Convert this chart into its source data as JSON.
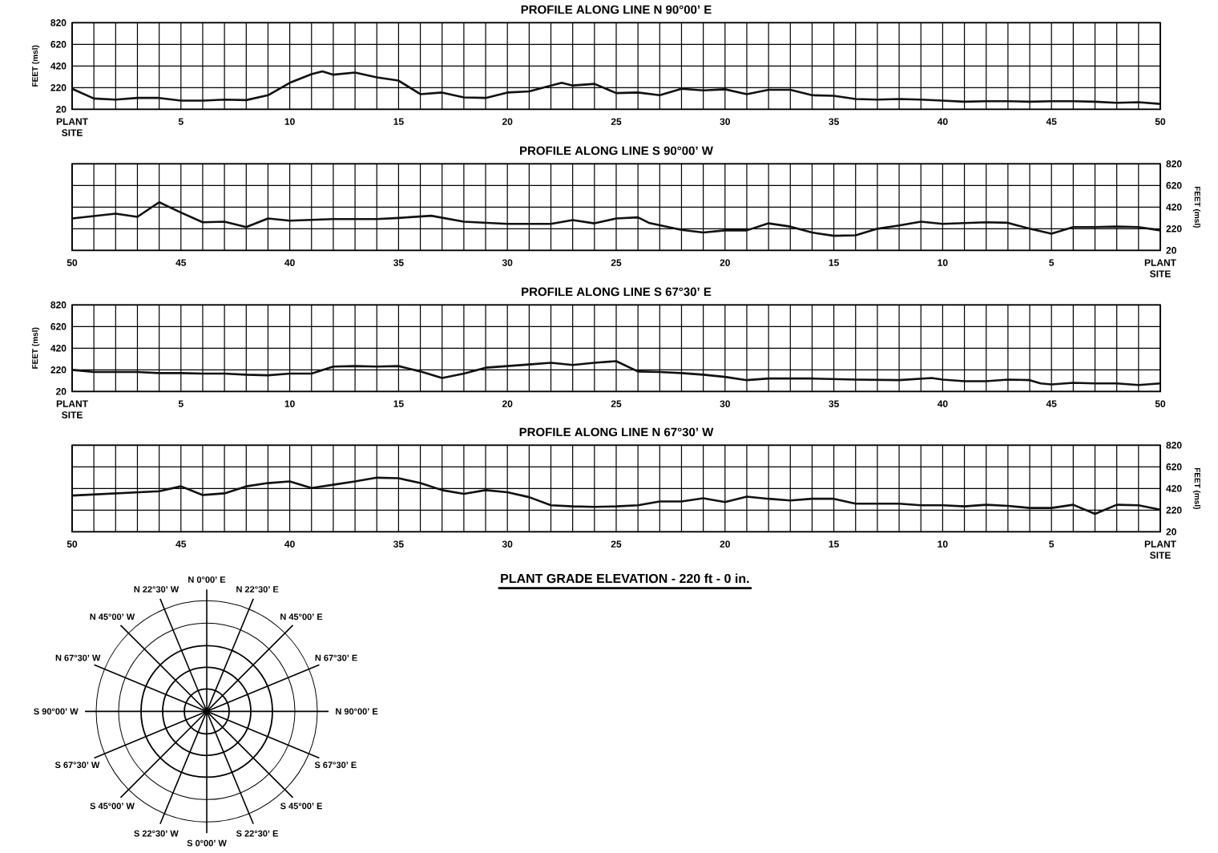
{
  "chart_data": [
    {
      "type": "line",
      "title": "PROFILE ALONG LINE N 90°00’ E",
      "ylabel": "FEET (msl)",
      "grid": true,
      "x": [
        0,
        1,
        2,
        3,
        4,
        5,
        6,
        7,
        8,
        9,
        10,
        11,
        11.5,
        12,
        13,
        14,
        15,
        16,
        17,
        18,
        19,
        20,
        21,
        22,
        22.5,
        23,
        24,
        25,
        26,
        27,
        28,
        29,
        30,
        31,
        32,
        33,
        34,
        35,
        36,
        37,
        38,
        39,
        40,
        41,
        42,
        43,
        44,
        45,
        46,
        47,
        48,
        49,
        50
      ],
      "series": [
        {
          "color": "#111111",
          "values": [
            210,
            120,
            110,
            125,
            125,
            100,
            100,
            110,
            105,
            150,
            265,
            345,
            370,
            340,
            360,
            315,
            285,
            160,
            175,
            130,
            125,
            175,
            185,
            240,
            265,
            240,
            255,
            170,
            175,
            150,
            210,
            195,
            205,
            160,
            200,
            200,
            150,
            145,
            115,
            110,
            115,
            110,
            100,
            90,
            95,
            95,
            90,
            95,
            95,
            90,
            80,
            85,
            70
          ]
        }
      ],
      "xlim": [
        0,
        50
      ],
      "xticks": [
        {
          "value": 0,
          "label": "PLANT SITE"
        },
        {
          "value": 1,
          "label": null
        },
        {
          "value": 2,
          "label": null
        },
        {
          "value": 3,
          "label": null
        },
        {
          "value": 4,
          "label": null
        },
        5,
        {
          "value": 6,
          "label": null
        },
        {
          "value": 7,
          "label": null
        },
        {
          "value": 8,
          "label": null
        },
        {
          "value": 9,
          "label": null
        },
        10,
        {
          "value": 11,
          "label": null
        },
        {
          "value": 12,
          "label": null
        },
        {
          "value": 13,
          "label": null
        },
        {
          "value": 14,
          "label": null
        },
        15,
        {
          "value": 16,
          "label": null
        },
        {
          "value": 17,
          "label": null
        },
        {
          "value": 18,
          "label": null
        },
        {
          "value": 19,
          "label": null
        },
        20,
        {
          "value": 21,
          "label": null
        },
        {
          "value": 22,
          "label": null
        },
        {
          "value": 23,
          "label": null
        },
        {
          "value": 24,
          "label": null
        },
        25,
        {
          "value": 26,
          "label": null
        },
        {
          "value": 27,
          "label": null
        },
        {
          "value": 28,
          "label": null
        },
        {
          "value": 29,
          "label": null
        },
        30,
        {
          "value": 31,
          "label": null
        },
        {
          "value": 32,
          "label": null
        },
        {
          "value": 33,
          "label": null
        },
        {
          "value": 34,
          "label": null
        },
        35,
        {
          "value": 36,
          "label": null
        },
        {
          "value": 37,
          "label": null
        },
        {
          "value": 38,
          "label": null
        },
        {
          "value": 39,
          "label": null
        },
        40,
        {
          "value": 41,
          "label": null
        },
        {
          "value": 42,
          "label": null
        },
        {
          "value": 43,
          "label": null
        },
        {
          "value": 44,
          "label": null
        },
        45,
        {
          "value": 46,
          "label": null
        },
        {
          "value": 47,
          "label": null
        },
        {
          "value": 48,
          "label": null
        },
        {
          "value": 49,
          "label": null
        },
        50
      ],
      "ylim": [
        20,
        820
      ],
      "yticks": [
        20,
        220,
        420,
        620,
        820
      ]
    },
    {
      "type": "line",
      "title": "PROFILE ALONG LINE S 90°00’ W",
      "y2label": "FEET (msl)",
      "grid": true,
      "x": [
        50,
        48,
        47,
        46,
        45,
        44,
        43,
        42,
        41,
        40,
        38,
        36,
        35,
        33.5,
        32,
        30,
        28,
        27,
        26,
        25,
        24,
        23.5,
        22,
        21,
        20,
        19,
        18,
        17,
        16,
        15,
        14,
        13,
        12,
        11,
        10,
        8,
        7,
        6,
        5,
        4,
        3,
        2,
        1,
        0
      ],
      "series": [
        {
          "color": "#111111",
          "axis": "y2",
          "values": [
            315,
            360,
            330,
            465,
            370,
            280,
            285,
            235,
            315,
            295,
            310,
            310,
            320,
            340,
            285,
            265,
            265,
            300,
            270,
            315,
            325,
            275,
            210,
            185,
            205,
            205,
            270,
            240,
            185,
            155,
            160,
            220,
            250,
            285,
            265,
            280,
            275,
            220,
            175,
            235,
            235,
            240,
            235,
            205
          ]
        }
      ],
      "xlim": [
        50,
        0
      ],
      "xticks": [
        {
          "value": 0,
          "label": "PLANT SITE"
        },
        {
          "value": 1,
          "label": null
        },
        {
          "value": 2,
          "label": null
        },
        {
          "value": 3,
          "label": null
        },
        {
          "value": 4,
          "label": null
        },
        5,
        {
          "value": 6,
          "label": null
        },
        {
          "value": 7,
          "label": null
        },
        {
          "value": 8,
          "label": null
        },
        {
          "value": 9,
          "label": null
        },
        10,
        {
          "value": 11,
          "label": null
        },
        {
          "value": 12,
          "label": null
        },
        {
          "value": 13,
          "label": null
        },
        {
          "value": 14,
          "label": null
        },
        15,
        {
          "value": 16,
          "label": null
        },
        {
          "value": 17,
          "label": null
        },
        {
          "value": 18,
          "label": null
        },
        {
          "value": 19,
          "label": null
        },
        20,
        {
          "value": 21,
          "label": null
        },
        {
          "value": 22,
          "label": null
        },
        {
          "value": 23,
          "label": null
        },
        {
          "value": 24,
          "label": null
        },
        25,
        {
          "value": 26,
          "label": null
        },
        {
          "value": 27,
          "label": null
        },
        {
          "value": 28,
          "label": null
        },
        {
          "value": 29,
          "label": null
        },
        30,
        {
          "value": 31,
          "label": null
        },
        {
          "value": 32,
          "label": null
        },
        {
          "value": 33,
          "label": null
        },
        {
          "value": 34,
          "label": null
        },
        35,
        {
          "value": 36,
          "label": null
        },
        {
          "value": 37,
          "label": null
        },
        {
          "value": 38,
          "label": null
        },
        {
          "value": 39,
          "label": null
        },
        40,
        {
          "value": 41,
          "label": null
        },
        {
          "value": 42,
          "label": null
        },
        {
          "value": 43,
          "label": null
        },
        {
          "value": 44,
          "label": null
        },
        45,
        {
          "value": 46,
          "label": null
        },
        {
          "value": 47,
          "label": null
        },
        {
          "value": 48,
          "label": null
        },
        {
          "value": 49,
          "label": null
        },
        50
      ],
      "y2lim": [
        20,
        820
      ],
      "y2ticks": [
        20,
        220,
        420,
        620,
        820
      ]
    },
    {
      "type": "line",
      "title": "PROFILE ALONG LINE S 67°30’ E",
      "ylabel": "FEET (msl)",
      "grid": true,
      "x": [
        0,
        1,
        2,
        3,
        4,
        5,
        6,
        7,
        8,
        9,
        10,
        11,
        12,
        13,
        14,
        15,
        16,
        17,
        18,
        19,
        20,
        21,
        22,
        23,
        24,
        25,
        26,
        27,
        28,
        29,
        30,
        31,
        32,
        34,
        36,
        38,
        39.5,
        40,
        41,
        42,
        43,
        44,
        44.5,
        45,
        46,
        47,
        48,
        49,
        50
      ],
      "series": [
        {
          "color": "#111111",
          "values": [
            220,
            200,
            200,
            200,
            190,
            190,
            185,
            185,
            175,
            170,
            185,
            185,
            250,
            255,
            250,
            255,
            205,
            145,
            185,
            240,
            255,
            270,
            285,
            265,
            285,
            300,
            205,
            200,
            190,
            175,
            155,
            125,
            140,
            140,
            130,
            125,
            145,
            130,
            115,
            115,
            130,
            125,
            95,
            85,
            100,
            95,
            95,
            80,
            95
          ]
        }
      ],
      "xlim": [
        0,
        50
      ],
      "xticks": [
        {
          "value": 0,
          "label": "PLANT SITE"
        },
        {
          "value": 1,
          "label": null
        },
        {
          "value": 2,
          "label": null
        },
        {
          "value": 3,
          "label": null
        },
        {
          "value": 4,
          "label": null
        },
        5,
        {
          "value": 6,
          "label": null
        },
        {
          "value": 7,
          "label": null
        },
        {
          "value": 8,
          "label": null
        },
        {
          "value": 9,
          "label": null
        },
        10,
        {
          "value": 11,
          "label": null
        },
        {
          "value": 12,
          "label": null
        },
        {
          "value": 13,
          "label": null
        },
        {
          "value": 14,
          "label": null
        },
        15,
        {
          "value": 16,
          "label": null
        },
        {
          "value": 17,
          "label": null
        },
        {
          "value": 18,
          "label": null
        },
        {
          "value": 19,
          "label": null
        },
        20,
        {
          "value": 21,
          "label": null
        },
        {
          "value": 22,
          "label": null
        },
        {
          "value": 23,
          "label": null
        },
        {
          "value": 24,
          "label": null
        },
        25,
        {
          "value": 26,
          "label": null
        },
        {
          "value": 27,
          "label": null
        },
        {
          "value": 28,
          "label": null
        },
        {
          "value": 29,
          "label": null
        },
        30,
        {
          "value": 31,
          "label": null
        },
        {
          "value": 32,
          "label": null
        },
        {
          "value": 33,
          "label": null
        },
        {
          "value": 34,
          "label": null
        },
        35,
        {
          "value": 36,
          "label": null
        },
        {
          "value": 37,
          "label": null
        },
        {
          "value": 38,
          "label": null
        },
        {
          "value": 39,
          "label": null
        },
        40,
        {
          "value": 41,
          "label": null
        },
        {
          "value": 42,
          "label": null
        },
        {
          "value": 43,
          "label": null
        },
        {
          "value": 44,
          "label": null
        },
        45,
        {
          "value": 46,
          "label": null
        },
        {
          "value": 47,
          "label": null
        },
        {
          "value": 48,
          "label": null
        },
        {
          "value": 49,
          "label": null
        },
        50
      ],
      "ylim": [
        20,
        820
      ],
      "yticks": [
        20,
        220,
        420,
        620,
        820
      ]
    },
    {
      "type": "line",
      "title": "PROFILE ALONG LINE N 67°30’ W",
      "y2label": "FEET (msl)",
      "grid": true,
      "annotations": [
        "PLANT GRADE ELEVATION - 220 ft - 0 in."
      ],
      "x": [
        50,
        48,
        46,
        45,
        44,
        43,
        42,
        41,
        40,
        39,
        38,
        37,
        36,
        35,
        34,
        33,
        32,
        31,
        30,
        29,
        28,
        27,
        26,
        25,
        24,
        23,
        22,
        21,
        20,
        19,
        18,
        17,
        16,
        15,
        14,
        13,
        12,
        11,
        10,
        9,
        8,
        7,
        6,
        5,
        4,
        3,
        2,
        1,
        0
      ],
      "series": [
        {
          "color": "#111111",
          "axis": "y2",
          "values": [
            355,
            375,
            395,
            440,
            360,
            375,
            440,
            470,
            485,
            425,
            455,
            485,
            520,
            515,
            470,
            405,
            370,
            405,
            385,
            340,
            265,
            255,
            250,
            255,
            265,
            300,
            300,
            330,
            295,
            345,
            325,
            310,
            325,
            325,
            280,
            280,
            280,
            265,
            265,
            255,
            270,
            260,
            240,
            240,
            270,
            185,
            270,
            265,
            225
          ]
        }
      ],
      "xlim": [
        50,
        0
      ],
      "xticks": [
        {
          "value": 0,
          "label": "PLANT SITE"
        },
        {
          "value": 1,
          "label": null
        },
        {
          "value": 2,
          "label": null
        },
        {
          "value": 3,
          "label": null
        },
        {
          "value": 4,
          "label": null
        },
        5,
        {
          "value": 6,
          "label": null
        },
        {
          "value": 7,
          "label": null
        },
        {
          "value": 8,
          "label": null
        },
        {
          "value": 9,
          "label": null
        },
        10,
        {
          "value": 11,
          "label": null
        },
        {
          "value": 12,
          "label": null
        },
        {
          "value": 13,
          "label": null
        },
        {
          "value": 14,
          "label": null
        },
        15,
        {
          "value": 16,
          "label": null
        },
        {
          "value": 17,
          "label": null
        },
        {
          "value": 18,
          "label": null
        },
        {
          "value": 19,
          "label": null
        },
        20,
        {
          "value": 21,
          "label": null
        },
        {
          "value": 22,
          "label": null
        },
        {
          "value": 23,
          "label": null
        },
        {
          "value": 24,
          "label": null
        },
        25,
        {
          "value": 26,
          "label": null
        },
        {
          "value": 27,
          "label": null
        },
        {
          "value": 28,
          "label": null
        },
        {
          "value": 29,
          "label": null
        },
        30,
        {
          "value": 31,
          "label": null
        },
        {
          "value": 32,
          "label": null
        },
        {
          "value": 33,
          "label": null
        },
        {
          "value": 34,
          "label": null
        },
        35,
        {
          "value": 36,
          "label": null
        },
        {
          "value": 37,
          "label": null
        },
        {
          "value": 38,
          "label": null
        },
        {
          "value": 39,
          "label": null
        },
        40,
        {
          "value": 41,
          "label": null
        },
        {
          "value": 42,
          "label": null
        },
        {
          "value": 43,
          "label": null
        },
        {
          "value": 44,
          "label": null
        },
        45,
        {
          "value": 46,
          "label": null
        },
        {
          "value": 47,
          "label": null
        },
        {
          "value": 48,
          "label": null
        },
        {
          "value": 49,
          "label": null
        },
        50
      ],
      "y2lim": [
        20,
        820
      ],
      "y2ticks": [
        20,
        220,
        420,
        620,
        820
      ]
    },
    {
      "type": "other",
      "annotations": [
        "N 0°00’ E",
        "N 22°30’ E",
        "N 45°00’ E",
        "N 67°30’ E",
        "N 90°00’ E",
        "S 67°30’ E",
        "S 45°00’ E",
        "S 22°30’ E",
        "S 0°00’ W",
        "S 22°30’ W",
        "S 45°00’ W",
        "S 67°30’ W",
        "S 90°00’ W",
        "N 67°30’ W",
        "N 45°00’ W",
        "N 22°30’ W"
      ]
    }
  ]
}
